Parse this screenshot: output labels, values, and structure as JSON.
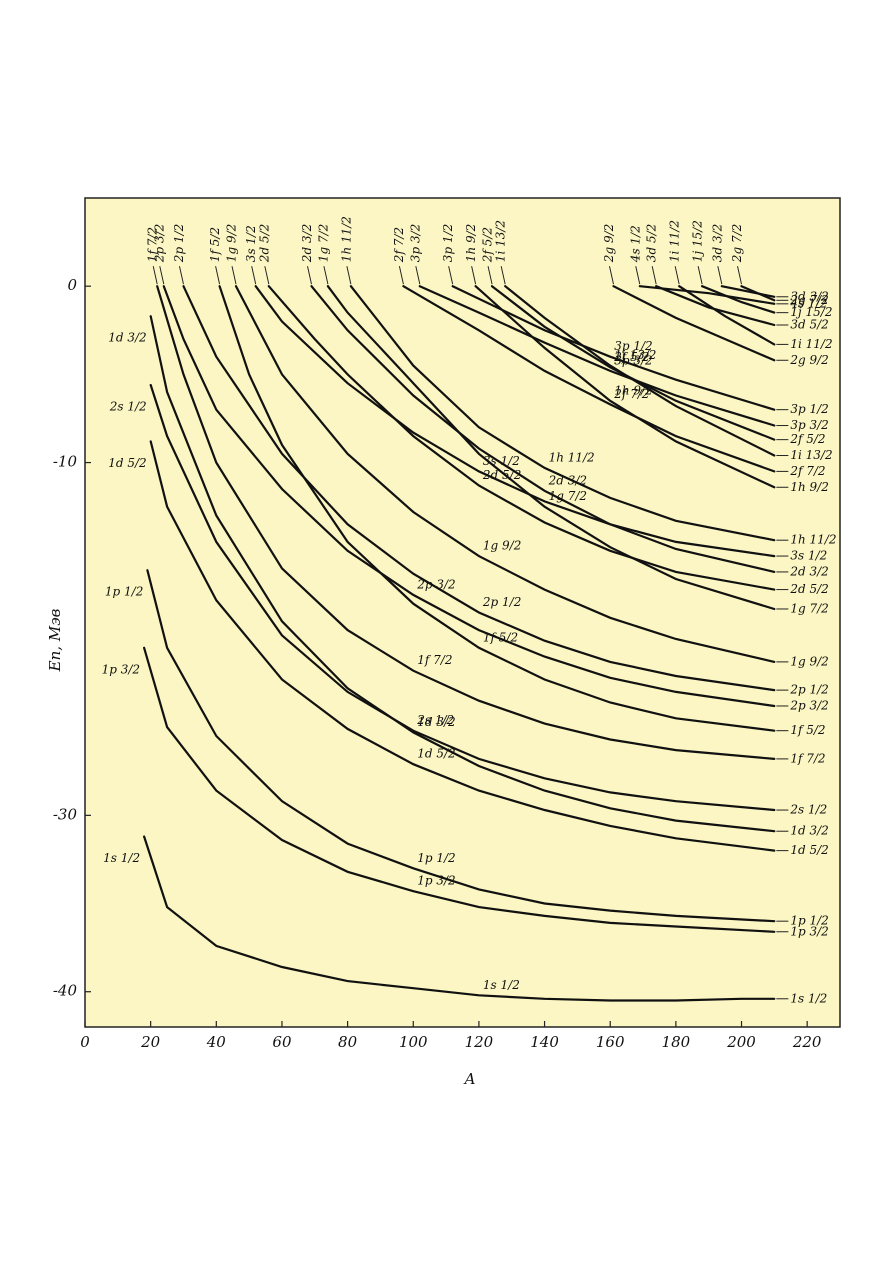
{
  "chart_data": {
    "type": "line",
    "x_label": "A",
    "y_label": "Eп, Мэв",
    "xlim": [
      0,
      230
    ],
    "ylim": [
      -42,
      5
    ],
    "xticks": [
      0,
      20,
      40,
      60,
      80,
      100,
      120,
      140,
      160,
      180,
      200,
      220
    ],
    "yticks": [
      -40,
      -30,
      -10,
      0
    ],
    "grid": false,
    "background": "#fbf6c3",
    "series": [
      {
        "name": "1s 1/2",
        "color": "#111111",
        "x": [
          18,
          25,
          40,
          60,
          80,
          100,
          120,
          140,
          160,
          180,
          200,
          210
        ],
        "values": [
          -31.2,
          -35.2,
          -37.4,
          -38.6,
          -39.4,
          -39.8,
          -40.2,
          -40.4,
          -40.5,
          -40.5,
          -40.4,
          -40.4
        ]
      },
      {
        "name": "1p 3/2",
        "color": "#111111",
        "x": [
          18,
          25,
          40,
          60,
          80,
          100,
          120,
          140,
          160,
          180,
          210
        ],
        "values": [
          -20.5,
          -25.0,
          -28.6,
          -31.4,
          -33.2,
          -34.3,
          -35.2,
          -35.7,
          -36.1,
          -36.3,
          -36.6
        ]
      },
      {
        "name": "1p 1/2",
        "color": "#111111",
        "x": [
          19,
          25,
          40,
          60,
          80,
          100,
          120,
          140,
          160,
          180,
          210
        ],
        "values": [
          -16.1,
          -20.5,
          -25.5,
          -29.2,
          -31.6,
          -33.0,
          -34.2,
          -35.0,
          -35.4,
          -35.7,
          -36.0
        ]
      },
      {
        "name": "1d 5/2",
        "color": "#111111",
        "x": [
          20,
          25,
          40,
          60,
          80,
          100,
          120,
          140,
          160,
          180,
          210
        ],
        "values": [
          -8.8,
          -12.5,
          -17.8,
          -22.3,
          -25.1,
          -27.1,
          -28.6,
          -29.7,
          -30.6,
          -31.3,
          -32.0
        ]
      },
      {
        "name": "1d 3/2",
        "color": "#111111",
        "x": [
          20,
          25,
          40,
          60,
          80,
          100,
          120,
          140,
          160,
          180,
          210
        ],
        "values": [
          -1.7,
          -6.0,
          -13.0,
          -19.0,
          -22.8,
          -25.3,
          -27.2,
          -28.6,
          -29.6,
          -30.3,
          -30.9
        ]
      },
      {
        "name": "2s 1/2",
        "color": "#111111",
        "x": [
          20,
          25,
          40,
          60,
          80,
          100,
          120,
          140,
          160,
          180,
          210
        ],
        "values": [
          -5.6,
          -8.5,
          -14.5,
          -19.8,
          -23.0,
          -25.2,
          -26.8,
          -27.9,
          -28.7,
          -29.2,
          -29.7
        ]
      },
      {
        "name": "1f 7/2",
        "color": "#111111",
        "x": [
          22,
          30,
          40,
          60,
          80,
          100,
          120,
          140,
          160,
          180,
          210
        ],
        "values": [
          0,
          -5,
          -10,
          -16,
          -19.5,
          -21.8,
          -23.5,
          -24.8,
          -25.7,
          -26.3,
          -26.8
        ]
      },
      {
        "name": "2p 3/2",
        "color": "#111111",
        "x": [
          24,
          30,
          40,
          60,
          80,
          100,
          120,
          140,
          160,
          180,
          210
        ],
        "values": [
          0,
          -3,
          -7,
          -11.5,
          -15,
          -17.5,
          -19.5,
          -21,
          -22.2,
          -23,
          -23.8
        ]
      },
      {
        "name": "2p 1/2",
        "color": "#111111",
        "x": [
          30,
          40,
          60,
          80,
          100,
          120,
          140,
          160,
          180,
          210
        ],
        "values": [
          0,
          -4,
          -9.5,
          -13.5,
          -16.3,
          -18.5,
          -20.1,
          -21.3,
          -22.1,
          -22.9
        ]
      },
      {
        "name": "1f 5/2",
        "color": "#111111",
        "x": [
          41,
          50,
          60,
          80,
          100,
          120,
          140,
          160,
          180,
          210
        ],
        "values": [
          0,
          -5,
          -9,
          -14.5,
          -18,
          -20.5,
          -22.3,
          -23.6,
          -24.5,
          -25.2
        ]
      },
      {
        "name": "1g 9/2",
        "color": "#111111",
        "x": [
          46,
          60,
          80,
          100,
          120,
          140,
          160,
          180,
          210
        ],
        "values": [
          0,
          -5,
          -9.5,
          -12.8,
          -15.3,
          -17.2,
          -18.8,
          -20,
          -21.3
        ]
      },
      {
        "name": "3s 1/2",
        "color": "#111111",
        "x": [
          52,
          60,
          80,
          100,
          120,
          140,
          160,
          180,
          210
        ],
        "values": [
          0,
          -2,
          -5.5,
          -8.3,
          -10.5,
          -12.2,
          -13.5,
          -14.5,
          -15.3
        ]
      },
      {
        "name": "2d 5/2",
        "color": "#111111",
        "x": [
          56,
          70,
          80,
          100,
          120,
          140,
          160,
          180,
          210
        ],
        "values": [
          0,
          -3,
          -5,
          -8.5,
          -11.3,
          -13.4,
          -15,
          -16.2,
          -17.2
        ]
      },
      {
        "name": "2d 3/2",
        "color": "#111111",
        "x": [
          69,
          80,
          100,
          120,
          140,
          160,
          180,
          210
        ],
        "values": [
          0,
          -2.5,
          -6.2,
          -9.2,
          -11.6,
          -13.5,
          -14.9,
          -16.2
        ]
      },
      {
        "name": "1g 7/2",
        "color": "#111111",
        "x": [
          74,
          80,
          100,
          120,
          140,
          160,
          180,
          210
        ],
        "values": [
          0,
          -1.5,
          -5.5,
          -9.5,
          -12.5,
          -14.8,
          -16.6,
          -18.3
        ]
      },
      {
        "name": "1h 11/2",
        "color": "#111111",
        "x": [
          81,
          100,
          120,
          140,
          160,
          180,
          210
        ],
        "values": [
          0,
          -4.5,
          -8,
          -10.3,
          -12,
          -13.3,
          -14.4
        ]
      },
      {
        "name": "2f 7/2",
        "color": "#111111",
        "x": [
          97,
          120,
          140,
          160,
          180,
          210
        ],
        "values": [
          0,
          -2.5,
          -4.8,
          -6.7,
          -8.5,
          -10.5
        ]
      },
      {
        "name": "3p 3/2",
        "color": "#111111",
        "x": [
          102,
          120,
          140,
          160,
          180,
          210
        ],
        "values": [
          0,
          -1.5,
          -3.2,
          -4.8,
          -6.2,
          -7.9
        ]
      },
      {
        "name": "3p 1/2",
        "color": "#111111",
        "x": [
          112,
          140,
          160,
          180,
          210
        ],
        "values": [
          0,
          -2.5,
          -4,
          -5.3,
          -7.0
        ]
      },
      {
        "name": "1h 9/2",
        "color": "#111111",
        "x": [
          119,
          140,
          160,
          180,
          210
        ],
        "values": [
          0,
          -3.5,
          -6.5,
          -8.8,
          -11.4
        ]
      },
      {
        "name": "2f 5/2",
        "color": "#111111",
        "x": [
          124,
          140,
          160,
          180,
          210
        ],
        "values": [
          0,
          -2.3,
          -4.6,
          -6.5,
          -8.7
        ]
      },
      {
        "name": "1i 13/2",
        "color": "#111111",
        "x": [
          128,
          140,
          160,
          180,
          210
        ],
        "values": [
          0,
          -1.8,
          -4.5,
          -6.8,
          -9.6
        ]
      },
      {
        "name": "2g 9/2",
        "color": "#111111",
        "x": [
          161,
          180,
          210
        ],
        "values": [
          0,
          -1.8,
          -4.2
        ]
      },
      {
        "name": "4s 1/2",
        "color": "#111111",
        "x": [
          169,
          190,
          210
        ],
        "values": [
          0,
          -0.4,
          -1.0
        ]
      },
      {
        "name": "3d 5/2",
        "color": "#111111",
        "x": [
          174,
          190,
          210
        ],
        "values": [
          0,
          -1.2,
          -2.2
        ]
      },
      {
        "name": "1i 11/2",
        "color": "#111111",
        "x": [
          181,
          195,
          210
        ],
        "values": [
          0,
          -1.7,
          -3.3
        ]
      },
      {
        "name": "1j 15/2",
        "color": "#111111",
        "x": [
          188,
          200,
          210
        ],
        "values": [
          0,
          -0.9,
          -1.5
        ]
      },
      {
        "name": "3d 3/2",
        "color": "#111111",
        "x": [
          194,
          210
        ],
        "values": [
          0,
          -0.6
        ]
      },
      {
        "name": "2g 7/2",
        "color": "#111111",
        "x": [
          200,
          210
        ],
        "values": [
          0,
          -0.8
        ]
      }
    ]
  }
}
